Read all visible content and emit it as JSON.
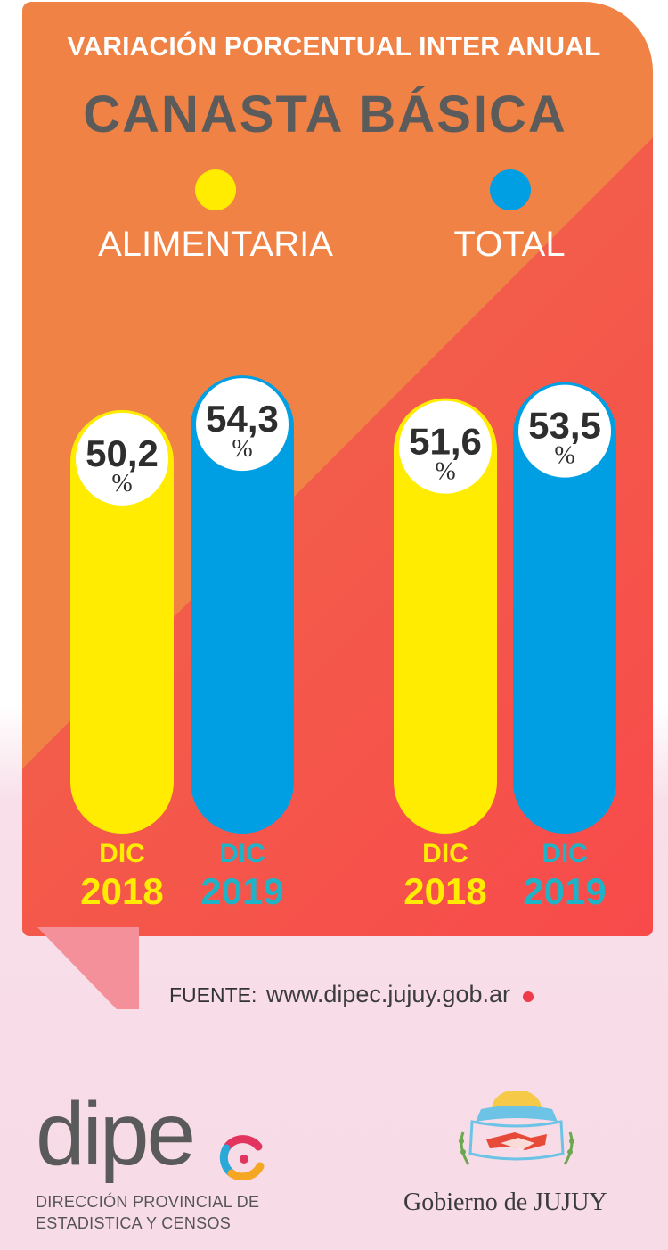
{
  "chart_data": {
    "type": "bar",
    "title": "VARIACIÓN PORCENTUAL INTER ANUAL",
    "subtitle": "CANASTA BÁSICA",
    "unit": "%",
    "legend": [
      {
        "label": "ALIMENTARIA",
        "color": "#ffec00"
      },
      {
        "label": "TOTAL",
        "color": "#009fe3"
      }
    ],
    "bars": [
      {
        "value": 50.2,
        "label": "50,2",
        "period_top": "DIC",
        "period_bottom": "2018",
        "color": "#ffec00",
        "text_color": "#ffec00"
      },
      {
        "value": 54.3,
        "label": "54,3",
        "period_top": "DIC",
        "period_bottom": "2019",
        "color": "#009fe3",
        "text_color": "#1fb3c7"
      },
      {
        "value": 51.6,
        "label": "51,6",
        "period_top": "DIC",
        "period_bottom": "2018",
        "color": "#ffec00",
        "text_color": "#ffec00"
      },
      {
        "value": 53.5,
        "label": "53,5",
        "period_top": "DIC",
        "period_bottom": "2019",
        "color": "#009fe3",
        "text_color": "#1fb3c7"
      }
    ]
  },
  "source": {
    "label": "FUENTE:",
    "url": "www.dipec.jujuy.gob.ar"
  },
  "logos": {
    "dipec_word": "dipe",
    "dipec_caption_line1": "DIRECCIÓN PROVINCIAL DE",
    "dipec_caption_line2": "ESTADISTICA Y CENSOS",
    "gobierno": "Gobierno de JUJUY"
  }
}
